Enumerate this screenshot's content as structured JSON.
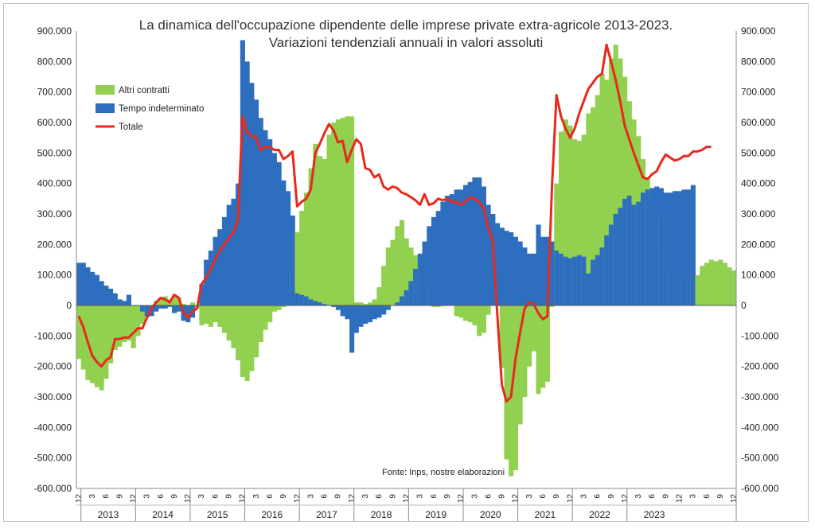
{
  "chart_data": {
    "type": "bar",
    "title": "La dinamica dell'occupazione dipendente delle imprese private extra-agricole 2013-2023.",
    "subtitle": "Variazioni tendenziali annuali in valori assoluti",
    "source": "Fonte: Inps, nostre elaborazioni",
    "ylim": [
      -600000,
      900000
    ],
    "y_ticks": [
      "-600.000",
      "-500.000",
      "-400.000",
      "-300.000",
      "-200.000",
      "-100.000",
      "0",
      "100.000",
      "200.000",
      "300.000",
      "400.000",
      "500.000",
      "600.000",
      "700.000",
      "800.000",
      "900.000"
    ],
    "years": [
      "2013",
      "2014",
      "2015",
      "2016",
      "2017",
      "2018",
      "2019",
      "2020",
      "2021",
      "2022",
      "2023"
    ],
    "start": {
      "year": 2012,
      "month": 12
    },
    "legend": {
      "position": "top-left"
    },
    "series": [
      {
        "name": "Altri contratti",
        "kind": "bar",
        "color": "#92d050",
        "values": [
          -175000,
          -210000,
          -245000,
          -255000,
          -268000,
          -278000,
          -240000,
          -190000,
          -146000,
          -135000,
          -120000,
          -115000,
          -140000,
          -100000,
          -60000,
          -40000,
          -10000,
          15000,
          25000,
          30000,
          20000,
          35000,
          25000,
          5000,
          0,
          10000,
          -10000,
          -65000,
          -60000,
          -70000,
          -55000,
          -70000,
          -90000,
          -115000,
          -140000,
          -180000,
          -235000,
          -248000,
          -215000,
          -170000,
          -120000,
          -80000,
          -55000,
          -20000,
          -15000,
          -5000,
          35000,
          120000,
          240000,
          310000,
          370000,
          450000,
          530000,
          490000,
          480000,
          560000,
          600000,
          610000,
          615000,
          620000,
          620000,
          10000,
          10000,
          5000,
          10000,
          20000,
          60000,
          130000,
          190000,
          215000,
          260000,
          280000,
          220000,
          190000,
          165000,
          130000,
          100000,
          60000,
          -5000,
          -5000,
          -2000,
          0,
          0,
          -35000,
          -40000,
          -50000,
          -55000,
          -65000,
          -100000,
          -90000,
          -30000,
          10000,
          60000,
          -205000,
          -505000,
          -560000,
          -540000,
          -390000,
          -300000,
          -200000,
          -150000,
          -290000,
          -270000,
          -250000,
          -5000,
          400000,
          570000,
          610000,
          590000,
          545000,
          540000,
          560000,
          630000,
          650000,
          690000,
          760000,
          740000,
          810000,
          855000,
          810000,
          750000,
          670000,
          610000,
          555000,
          480000,
          420000,
          380000,
          330000,
          290000,
          170000,
          100000,
          80000,
          70000,
          100000,
          110000,
          115000,
          100000,
          130000,
          140000,
          150000,
          145000,
          150000,
          140000,
          125000,
          115000
        ]
      },
      {
        "name": "Tempo indeterminato",
        "kind": "bar",
        "color": "#2e6ebf",
        "values": [
          140000,
          140000,
          125000,
          110000,
          100000,
          80000,
          65000,
          55000,
          40000,
          20000,
          15000,
          35000,
          0,
          0,
          -20000,
          -35000,
          -35000,
          -20000,
          -10000,
          -10000,
          -5000,
          -25000,
          -20000,
          -50000,
          -55000,
          -40000,
          0,
          70000,
          150000,
          180000,
          225000,
          250000,
          290000,
          330000,
          350000,
          400000,
          870000,
          800000,
          730000,
          675000,
          615000,
          575000,
          545000,
          500000,
          470000,
          410000,
          375000,
          295000,
          40000,
          35000,
          30000,
          20000,
          15000,
          10000,
          5000,
          0,
          -5000,
          -15000,
          -35000,
          -45000,
          -155000,
          -90000,
          -70000,
          -60000,
          -55000,
          -45000,
          -40000,
          -30000,
          -15000,
          0,
          10000,
          30000,
          50000,
          80000,
          120000,
          170000,
          210000,
          260000,
          290000,
          310000,
          340000,
          360000,
          365000,
          380000,
          380000,
          395000,
          405000,
          420000,
          420000,
          390000,
          330000,
          300000,
          270000,
          255000,
          245000,
          240000,
          225000,
          210000,
          190000,
          170000,
          170000,
          265000,
          225000,
          225000,
          210000,
          180000,
          170000,
          160000,
          155000,
          160000,
          165000,
          160000,
          105000,
          150000,
          165000,
          190000,
          230000,
          265000,
          300000,
          320000,
          350000,
          360000,
          330000,
          340000,
          370000,
          380000,
          385000,
          390000,
          385000,
          370000,
          370000,
          375000,
          375000,
          380000,
          380000,
          395000
        ]
      },
      {
        "name": "Totale",
        "kind": "line",
        "color": "#e8291c",
        "values": [
          -35000,
          -70000,
          -120000,
          -165000,
          -185000,
          -200000,
          -180000,
          -170000,
          -110000,
          -110000,
          -105000,
          -105000,
          -90000,
          -75000,
          -75000,
          -40000,
          -10000,
          10000,
          25000,
          20000,
          10000,
          35000,
          25000,
          -20000,
          -40000,
          -20000,
          -10000,
          70000,
          90000,
          120000,
          150000,
          180000,
          200000,
          220000,
          240000,
          280000,
          620000,
          570000,
          555000,
          550000,
          510000,
          520000,
          520000,
          510000,
          510000,
          480000,
          490000,
          505000,
          325000,
          340000,
          350000,
          380000,
          500000,
          530000,
          565000,
          595000,
          575000,
          535000,
          540000,
          470000,
          510000,
          545000,
          530000,
          450000,
          445000,
          420000,
          430000,
          390000,
          380000,
          390000,
          385000,
          370000,
          365000,
          355000,
          345000,
          330000,
          365000,
          330000,
          335000,
          350000,
          345000,
          350000,
          340000,
          340000,
          330000,
          340000,
          355000,
          350000,
          340000,
          320000,
          255000,
          210000,
          -30000,
          -260000,
          -315000,
          -300000,
          -175000,
          -90000,
          -10000,
          10000,
          5000,
          -25000,
          -45000,
          -35000,
          385000,
          690000,
          620000,
          580000,
          550000,
          580000,
          630000,
          670000,
          710000,
          730000,
          750000,
          760000,
          855000,
          800000,
          740000,
          670000,
          590000,
          545000,
          500000,
          460000,
          420000,
          415000,
          430000,
          440000,
          470000,
          495000,
          485000,
          475000,
          480000,
          490000,
          490000,
          505000,
          505000,
          510000,
          520000,
          520000
        ]
      }
    ]
  }
}
